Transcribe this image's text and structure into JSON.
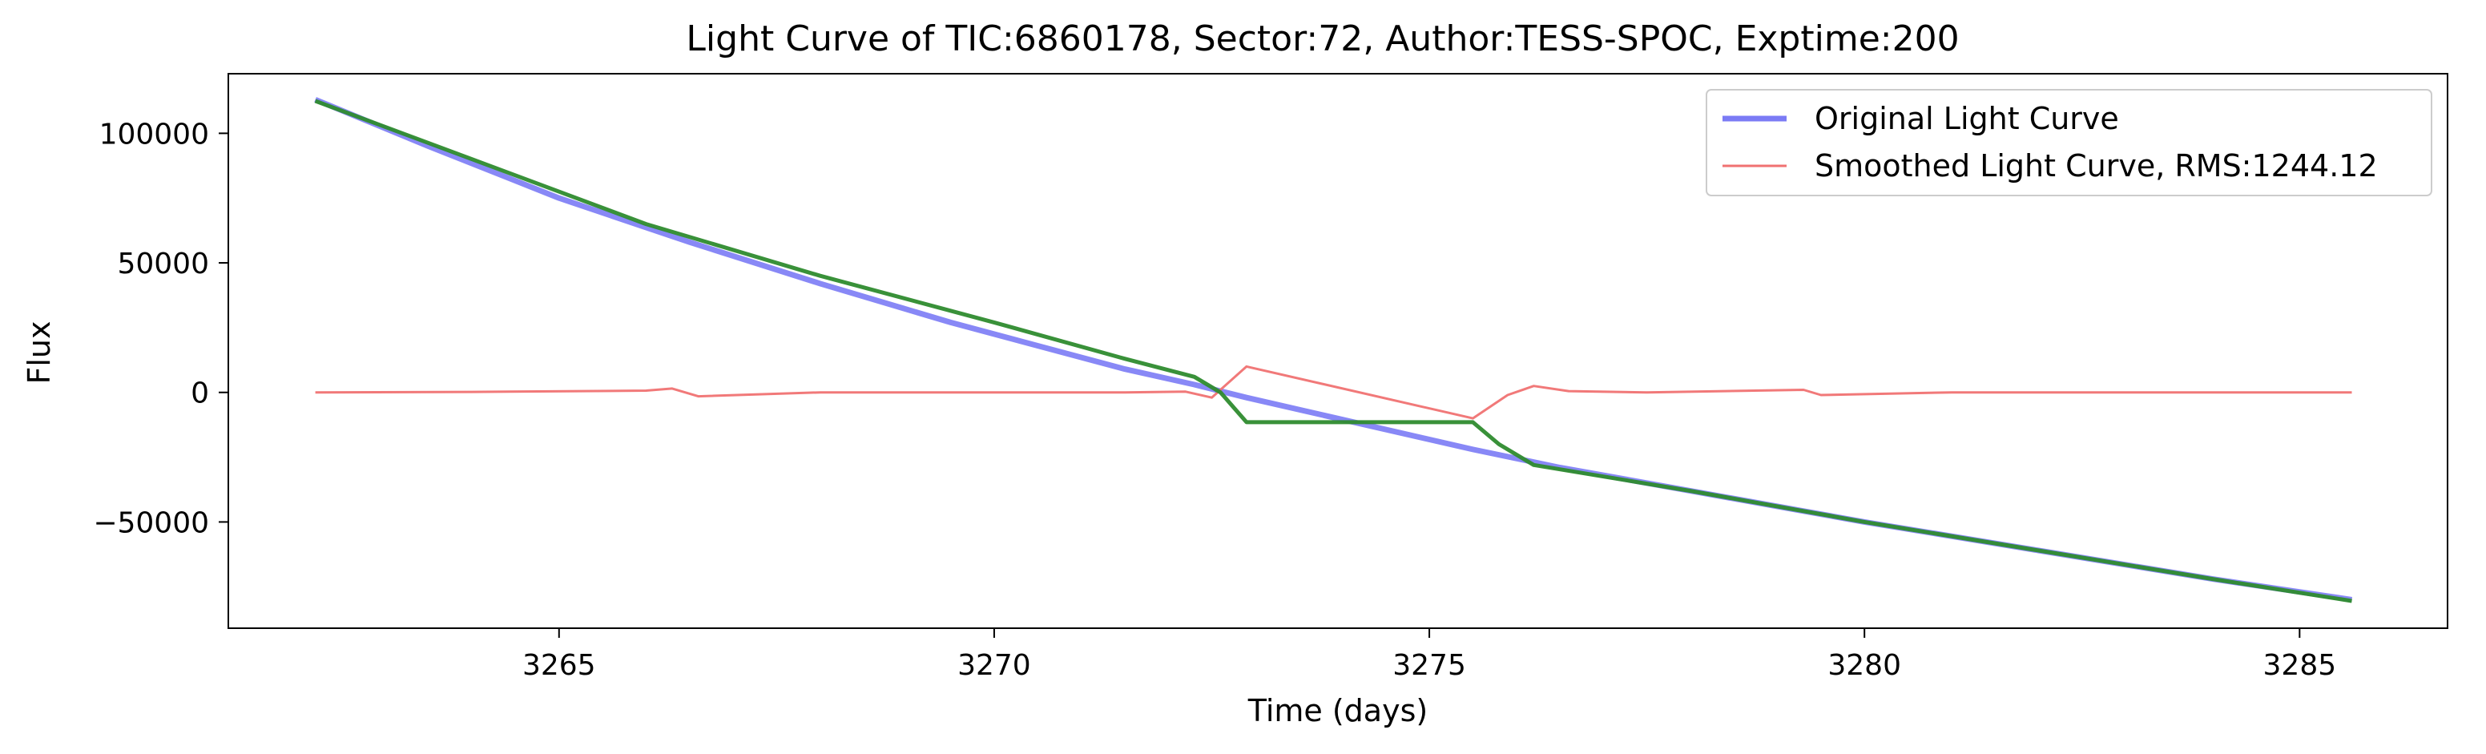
{
  "chart_data": {
    "type": "line",
    "title": "Light Curve of TIC:6860178, Sector:72, Author:TESS-SPOC, Exptime:200",
    "xlabel": "Time (days)",
    "ylabel": "Flux",
    "xlim": [
      3261.2,
      3286.7
    ],
    "ylim": [
      -91000,
      123000
    ],
    "xticks": [
      3265,
      3270,
      3275,
      3280,
      3285
    ],
    "yticks": [
      100000,
      50000,
      0,
      -50000
    ],
    "ytick_labels": [
      "100000",
      "50000",
      "0",
      "−50000"
    ],
    "xtick_labels": [
      "3265",
      "3270",
      "3275",
      "3280",
      "3285"
    ],
    "legend": {
      "placement": "upper right"
    },
    "series": [
      {
        "name": "Original Light Curve",
        "color": "#7b7bf5",
        "x": [
          3262.2,
          3263.5,
          3265.0,
          3266.5,
          3268.0,
          3269.5,
          3270.5,
          3271.5,
          3272.3,
          3272.9,
          3275.5,
          3276.5,
          3278.0,
          3280.0,
          3282.0,
          3284.0,
          3285.6
        ],
        "y": [
          113000,
          95000,
          75000,
          58000,
          42000,
          27000,
          18000,
          9000,
          3000,
          -2000,
          -22000,
          -29000,
          -38000,
          -50000,
          -61000,
          -72000,
          -80000
        ]
      },
      {
        "name": "Smoothed Light Curve, RMS:1244.12",
        "color": "#f07272",
        "x": [
          3262.2,
          3264.0,
          3266.0,
          3266.3,
          3266.6,
          3268.0,
          3270.0,
          3271.5,
          3272.2,
          3272.5,
          3272.9,
          3275.5,
          3275.9,
          3276.2,
          3276.6,
          3277.5,
          3279.3,
          3279.5,
          3281.0,
          3283.0,
          3285.6
        ],
        "y": [
          0,
          200,
          700,
          1500,
          -1500,
          0,
          0,
          0,
          300,
          -2000,
          10000,
          -10000,
          -1000,
          2500,
          500,
          0,
          1000,
          -1000,
          0,
          0,
          0
        ]
      },
      {
        "color": "#2e8b2e",
        "x": [
          3262.2,
          3264.0,
          3266.0,
          3268.0,
          3270.0,
          3271.5,
          3272.3,
          3272.6,
          3272.9,
          3275.5,
          3275.8,
          3276.2,
          3278.0,
          3280.0,
          3282.0,
          3284.0,
          3285.6
        ],
        "y": [
          112500,
          90000,
          65000,
          45000,
          27000,
          13000,
          6000,
          0,
          -11500,
          -11500,
          -20000,
          -28000,
          -38000,
          -50000,
          -61000,
          -72000,
          -80500
        ]
      }
    ]
  }
}
